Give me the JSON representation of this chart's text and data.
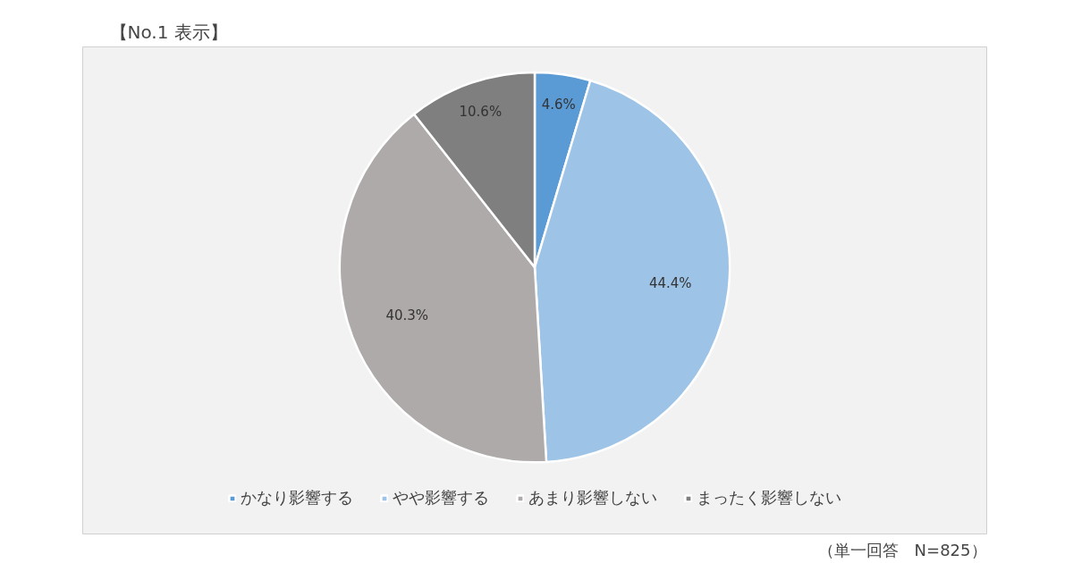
{
  "chart_data": {
    "type": "pie",
    "title": "【No.1 表示】",
    "categories": [
      "かなり影響する",
      "やや影響する",
      "あまり影響しない",
      "まったく影響しない"
    ],
    "values": [
      4.6,
      44.4,
      40.3,
      10.6
    ],
    "value_labels": [
      "4.6%",
      "44.4%",
      "40.3%",
      "10.6%"
    ],
    "colors": [
      "#5b9bd5",
      "#9dc3e6",
      "#aeaaaa",
      "#7f7f7f"
    ],
    "legend": "bottom",
    "annotations": [
      "（単一回答　N=825）"
    ]
  }
}
